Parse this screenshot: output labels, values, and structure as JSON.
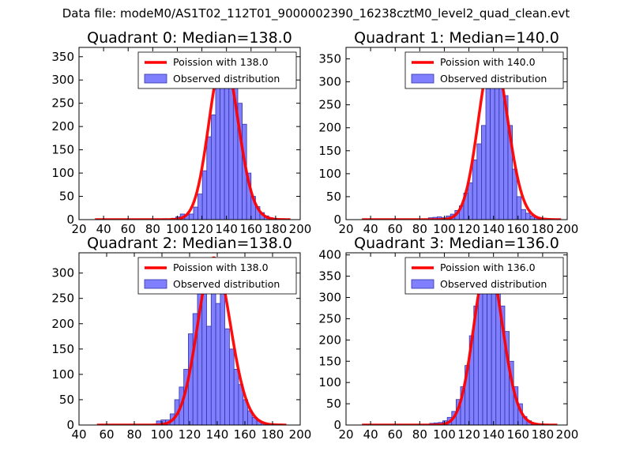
{
  "figure": {
    "suptitle": "Data file: modeM0/AS1T02_112T01_9000002390_16238cztM0_level2_quad_clean.evt",
    "colors": {
      "bar_fill": "#8080ff",
      "bar_edge": "#3333aa",
      "line": "#ff0000",
      "axis": "#000000"
    }
  },
  "chart_data": [
    {
      "type": "bar+line",
      "title": "Quadrant 0: Median=138.0",
      "median": 138.0,
      "xlim": [
        20,
        200
      ],
      "ylim": [
        0,
        370
      ],
      "xticks": [
        20,
        40,
        60,
        80,
        100,
        120,
        140,
        160,
        180,
        200
      ],
      "yticks": [
        0,
        50,
        100,
        150,
        200,
        250,
        300,
        350
      ],
      "legend": {
        "position": "top-right",
        "line_label": "Poission with 138.0",
        "bar_label": "Observed distribution"
      },
      "bins": {
        "start": 88,
        "width": 3.6,
        "counts": [
          2,
          0,
          3,
          6,
          12,
          10,
          12,
          27,
          55,
          105,
          178,
          225,
          290,
          320,
          345,
          350,
          300,
          250,
          205,
          100,
          50,
          28,
          15,
          8,
          4,
          2
        ]
      },
      "poisson_x_range": [
        33,
        192
      ]
    },
    {
      "type": "bar+line",
      "title": "Quadrant 1: Median=140.0",
      "median": 140.0,
      "xlim": [
        20,
        200
      ],
      "ylim": [
        0,
        375
      ],
      "xticks": [
        20,
        40,
        60,
        80,
        100,
        120,
        140,
        160,
        180,
        200
      ],
      "yticks": [
        0,
        50,
        100,
        150,
        200,
        250,
        300,
        350
      ],
      "legend": {
        "position": "top-right",
        "line_label": "Poission with 140.0",
        "bar_label": "Observed distribution"
      },
      "bins": {
        "start": 87,
        "width": 3.6,
        "counts": [
          4,
          5,
          6,
          4,
          8,
          12,
          20,
          30,
          58,
          80,
          130,
          165,
          205,
          285,
          345,
          362,
          330,
          270,
          205,
          110,
          50,
          22,
          14,
          8,
          4,
          2
        ]
      },
      "poisson_x_range": [
        33,
        195
      ]
    },
    {
      "type": "bar+line",
      "title": "Quadrant 2: Median=138.0",
      "median": 138.0,
      "xlim": [
        40,
        200
      ],
      "ylim": [
        0,
        340
      ],
      "xticks": [
        40,
        60,
        80,
        100,
        120,
        140,
        160,
        180,
        200
      ],
      "yticks": [
        0,
        50,
        100,
        150,
        200,
        250,
        300
      ],
      "legend": {
        "position": "top-right",
        "line_label": "Poission with 138.0",
        "bar_label": "Observed distribution"
      },
      "bins": {
        "start": 96,
        "width": 3.3,
        "counts": [
          8,
          10,
          10,
          22,
          50,
          75,
          110,
          180,
          220,
          260,
          290,
          195,
          330,
          240,
          280,
          190,
          150,
          110,
          80,
          50,
          28,
          15,
          8,
          4,
          2
        ]
      },
      "poisson_x_range": [
        53,
        190
      ]
    },
    {
      "type": "bar+line",
      "title": "Quadrant 3: Median=136.0",
      "median": 136.0,
      "xlim": [
        20,
        200
      ],
      "ylim": [
        0,
        405
      ],
      "xticks": [
        20,
        40,
        60,
        80,
        100,
        120,
        140,
        160,
        180,
        200
      ],
      "yticks": [
        0,
        50,
        100,
        150,
        200,
        250,
        300,
        350,
        400
      ],
      "legend": {
        "position": "top-right",
        "line_label": "Poission with 136.0",
        "bar_label": "Observed distribution"
      },
      "bins": {
        "start": 88,
        "width": 3.6,
        "counts": [
          4,
          5,
          6,
          10,
          18,
          32,
          60,
          90,
          140,
          210,
          280,
          310,
          335,
          385,
          380,
          330,
          280,
          220,
          150,
          90,
          50,
          20,
          10,
          5,
          3,
          2
        ]
      },
      "poisson_x_range": [
        33,
        192
      ]
    }
  ]
}
